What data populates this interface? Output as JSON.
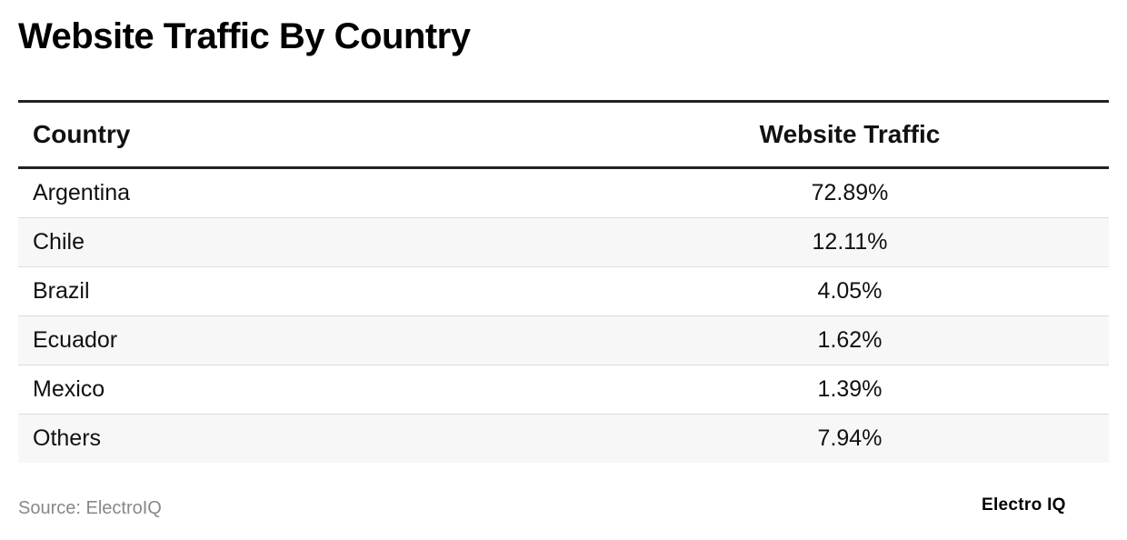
{
  "header": {
    "title": "Website Traffic By Country"
  },
  "table": {
    "columns": [
      "Country",
      "Website Traffic"
    ],
    "rows": [
      [
        "Argentina",
        "72.89%"
      ],
      [
        "Chile",
        "12.11%"
      ],
      [
        "Brazil",
        "4.05%"
      ],
      [
        "Ecuador",
        "1.62%"
      ],
      [
        "Mexico",
        "1.39%"
      ],
      [
        "Others",
        "7.94%"
      ]
    ]
  },
  "footer": {
    "source": "Source: ElectroIQ",
    "logo": "Electro IQ"
  }
}
